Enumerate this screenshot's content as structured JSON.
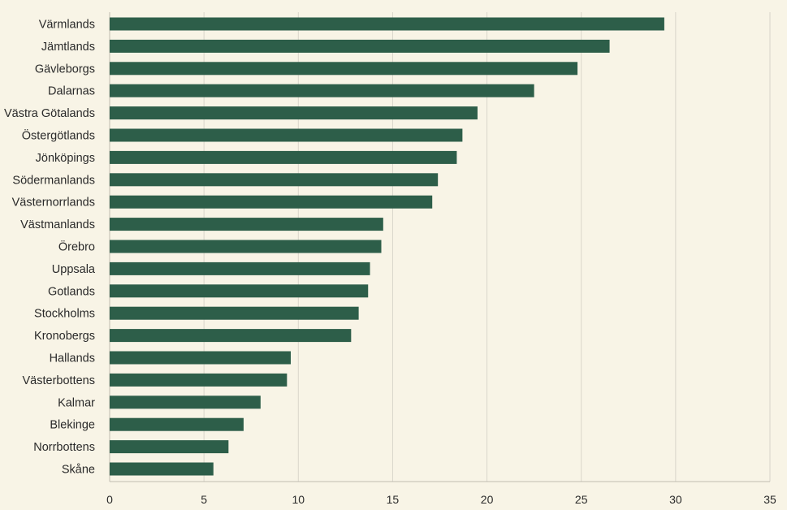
{
  "chart_data": {
    "type": "bar",
    "orientation": "horizontal",
    "title": "",
    "xlabel": "",
    "ylabel": "",
    "categories": [
      "Värmlands",
      "Jämtlands",
      "Gävleborgs",
      "Dalarnas",
      "Västra Götalands",
      "Östergötlands",
      "Jönköpings",
      "Södermanlands",
      "Västernorrlands",
      "Västmanlands",
      "Örebro",
      "Uppsala",
      "Gotlands",
      "Stockholms",
      "Kronobergs",
      "Hallands",
      "Västerbottens",
      "Kalmar",
      "Blekinge",
      "Norrbottens",
      "Skåne"
    ],
    "values": [
      29.4,
      26.5,
      24.8,
      22.5,
      19.5,
      18.7,
      18.4,
      17.4,
      17.1,
      14.5,
      14.4,
      13.8,
      13.7,
      13.2,
      12.8,
      9.6,
      9.4,
      8.0,
      7.1,
      6.3,
      5.5
    ],
    "xlim": [
      0,
      35
    ],
    "xticks": [
      "0",
      "5",
      "10",
      "15",
      "20",
      "25",
      "30",
      "35"
    ],
    "grid": true,
    "legend": "none",
    "colors": {
      "bar": "#2d5e49",
      "grid": "#d9d5cb",
      "background": "#f8f4e6"
    }
  }
}
